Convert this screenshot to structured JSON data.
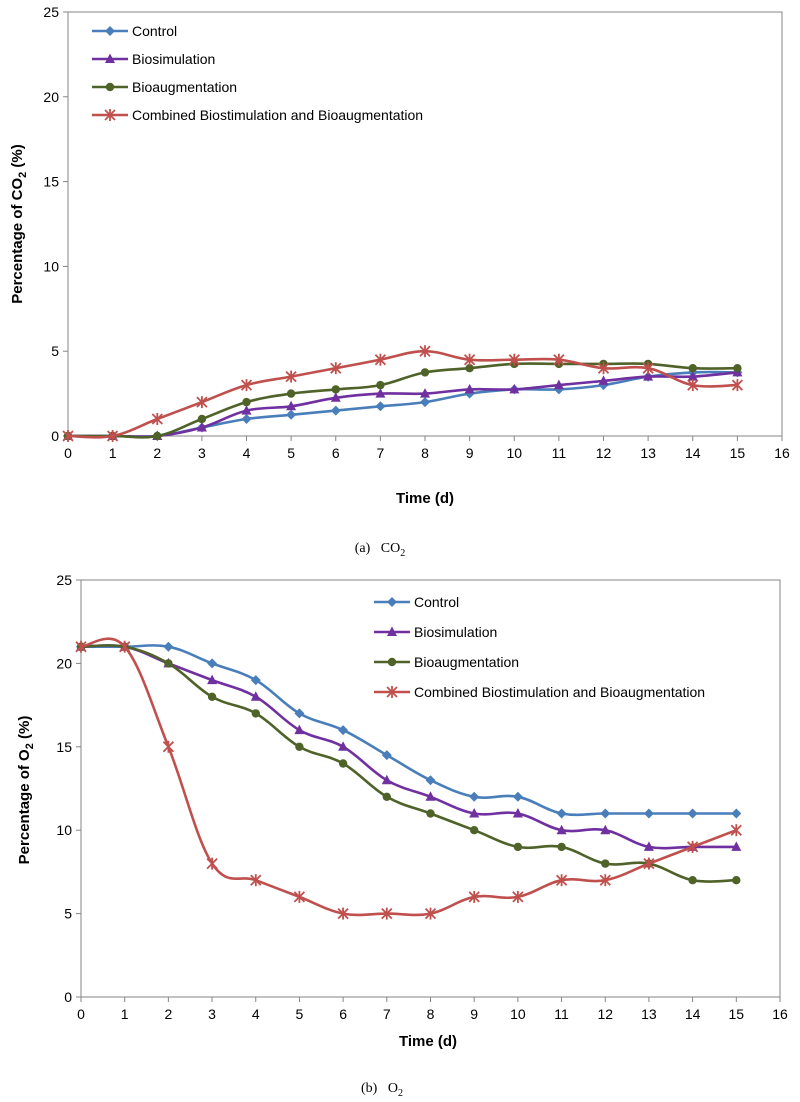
{
  "chart_data": [
    {
      "type": "line",
      "caption_label": "(a)",
      "caption_text": "CO",
      "caption_sub": "2",
      "xlabel": "Time (d)",
      "ylabel_prefix": "Percentage of CO",
      "ylabel_sub": "2",
      "ylabel_suffix": " (%)",
      "xlim": [
        0,
        16
      ],
      "ylim": [
        0,
        25
      ],
      "x_ticks": [
        "0",
        "1",
        "2",
        "3",
        "4",
        "5",
        "6",
        "7",
        "8",
        "9",
        "10",
        "11",
        "12",
        "13",
        "14",
        "15",
        "16"
      ],
      "y_ticks": [
        "0",
        "5",
        "10",
        "15",
        "20",
        "25"
      ],
      "grid": false,
      "legend_position": "top-left",
      "x": [
        0,
        1,
        2,
        3,
        4,
        5,
        6,
        7,
        8,
        9,
        10,
        11,
        12,
        13,
        14,
        15
      ],
      "series": [
        {
          "name": "Control",
          "color": "#4a7ebb",
          "marker": "diamond",
          "values": [
            0,
            0,
            0,
            0.5,
            1.0,
            1.25,
            1.5,
            1.75,
            2.0,
            2.5,
            2.75,
            2.75,
            3.0,
            3.5,
            3.75,
            3.75
          ]
        },
        {
          "name": "Biosimulation",
          "color": "#7030a0",
          "marker": "triangle",
          "values": [
            0,
            0,
            0,
            0.5,
            1.5,
            1.75,
            2.25,
            2.5,
            2.5,
            2.75,
            2.75,
            3.0,
            3.25,
            3.5,
            3.5,
            3.75
          ]
        },
        {
          "name": "Bioaugmentation",
          "color": "#4f6228",
          "marker": "circle",
          "values": [
            0,
            0,
            0,
            1.0,
            2.0,
            2.5,
            2.75,
            3.0,
            3.75,
            4.0,
            4.25,
            4.25,
            4.25,
            4.25,
            4.0,
            4.0
          ]
        },
        {
          "name": "Combined Biostimulation and Bioaugmentation",
          "color": "#c0504d",
          "marker": "star",
          "values": [
            0,
            0,
            1.0,
            2.0,
            3.0,
            3.5,
            4.0,
            4.5,
            5.0,
            4.5,
            4.5,
            4.5,
            4.0,
            4.0,
            3.0,
            3.0
          ]
        }
      ]
    },
    {
      "type": "line",
      "caption_label": "(b)",
      "caption_text": "O",
      "caption_sub": "2",
      "xlabel": "Time (d)",
      "ylabel_prefix": "Percentage  of O",
      "ylabel_sub": "2",
      "ylabel_suffix": "  (%)",
      "xlim": [
        0,
        16
      ],
      "ylim": [
        0,
        25
      ],
      "x_ticks": [
        "0",
        "1",
        "2",
        "3",
        "4",
        "5",
        "6",
        "7",
        "8",
        "9",
        "10",
        "11",
        "12",
        "13",
        "14",
        "15",
        "16"
      ],
      "y_ticks": [
        "0",
        "5",
        "10",
        "15",
        "20",
        "25"
      ],
      "grid": false,
      "legend_position": "top-right",
      "x": [
        0,
        1,
        2,
        3,
        4,
        5,
        6,
        7,
        8,
        9,
        10,
        11,
        12,
        13,
        14,
        15
      ],
      "series": [
        {
          "name": "Control",
          "color": "#4a7ebb",
          "marker": "diamond",
          "values": [
            21,
            21,
            21,
            20,
            19,
            17,
            16,
            14.5,
            13,
            12,
            12,
            11,
            11,
            11,
            11,
            11
          ]
        },
        {
          "name": "Biosimulation",
          "color": "#7030a0",
          "marker": "triangle",
          "values": [
            21,
            21,
            20,
            19,
            18,
            16,
            15,
            13,
            12,
            11,
            11,
            10,
            10,
            9,
            9,
            9
          ]
        },
        {
          "name": "Bioaugmentation",
          "color": "#4f6228",
          "marker": "circle",
          "values": [
            21,
            21,
            20,
            18,
            17,
            15,
            14,
            12,
            11,
            10,
            9,
            9,
            8,
            8,
            7,
            7
          ]
        },
        {
          "name": "Combined Biostimulation and Bioaugmentation",
          "color": "#c0504d",
          "marker": "star",
          "values": [
            21,
            21,
            15,
            8,
            7,
            6,
            5,
            5,
            5,
            6,
            6,
            7,
            7,
            8,
            9,
            10
          ]
        }
      ]
    }
  ]
}
